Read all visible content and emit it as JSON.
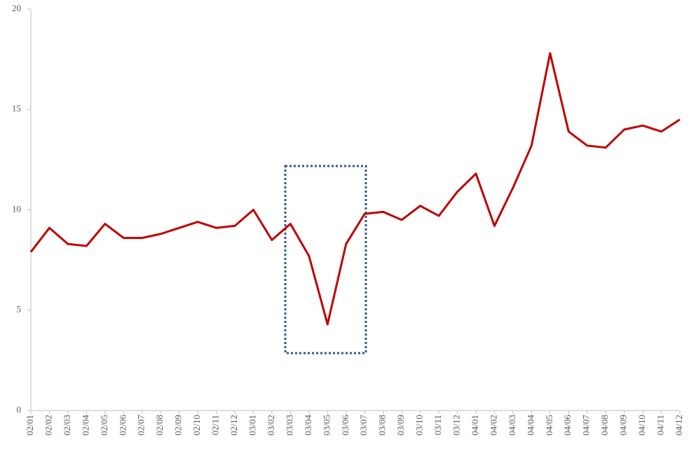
{
  "chart_data": {
    "type": "line",
    "categories": [
      "02/01",
      "02/02",
      "02/03",
      "02/04",
      "02/05",
      "02/06",
      "02/07",
      "02/08",
      "02/09",
      "02/10",
      "02/11",
      "02/12",
      "03/01",
      "03/02",
      "03/03",
      "03/04",
      "03/05",
      "03/06",
      "03/07",
      "03/08",
      "03/09",
      "03/10",
      "03/11",
      "03/12",
      "04/01",
      "04/02",
      "04/03",
      "04/04",
      "04/05",
      "04/06",
      "04/07",
      "04/08",
      "04/09",
      "04/10",
      "04/11",
      "04/12"
    ],
    "values": [
      7.9,
      9.1,
      8.3,
      8.2,
      9.3,
      8.6,
      8.6,
      8.8,
      9.1,
      9.4,
      9.1,
      9.2,
      10.0,
      8.5,
      9.3,
      7.7,
      4.3,
      8.3,
      9.8,
      9.9,
      9.5,
      10.2,
      9.7,
      10.9,
      11.8,
      9.2,
      11.1,
      13.2,
      17.8,
      13.9,
      13.2,
      13.1,
      14.0,
      14.2,
      13.9,
      14.5
    ],
    "color": "#c00000",
    "ylim": [
      0,
      20
    ],
    "yticks": [
      0,
      5,
      10,
      15,
      20
    ]
  }
}
